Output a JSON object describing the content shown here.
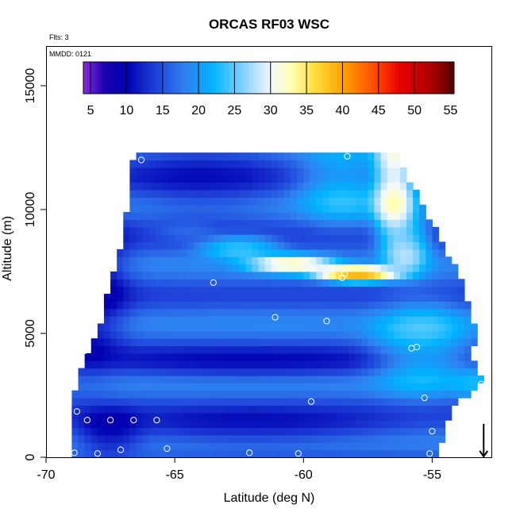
{
  "chart_data": {
    "type": "heatmap",
    "title": "ORCAS RF03 WSC",
    "xlabel": "Latitude (deg N)",
    "ylabel": "Altitude (m)",
    "xlim": [
      -70,
      -52.7
    ],
    "ylim": [
      0,
      16600
    ],
    "x_ticks": [
      -70,
      -65,
      -60,
      -55
    ],
    "y_ticks": [
      0,
      5000,
      10000,
      15000
    ],
    "annotations": {
      "flights": "Flts: 3",
      "mmdd": "MMDD: 0121"
    },
    "colorbar": {
      "min": 4,
      "max": 55.5,
      "ticks": [
        5,
        10,
        15,
        20,
        25,
        30,
        35,
        40,
        45,
        50,
        55
      ],
      "colors": [
        {
          "v": 4,
          "c": "#8a2be2"
        },
        {
          "v": 7,
          "c": "#1a00b0"
        },
        {
          "v": 10,
          "c": "#0000b0"
        },
        {
          "v": 14,
          "c": "#1e40d8"
        },
        {
          "v": 18,
          "c": "#2f80f0"
        },
        {
          "v": 22,
          "c": "#00b4ff"
        },
        {
          "v": 26,
          "c": "#7fd0ff"
        },
        {
          "v": 30,
          "c": "#f2f8ff"
        },
        {
          "v": 33,
          "c": "#ffffb0"
        },
        {
          "v": 36,
          "c": "#ffe040"
        },
        {
          "v": 40,
          "c": "#ffa500"
        },
        {
          "v": 45,
          "c": "#ff4000"
        },
        {
          "v": 48,
          "c": "#e80000"
        },
        {
          "v": 52,
          "c": "#b00000"
        },
        {
          "v": 55.5,
          "c": "#600000"
        }
      ]
    },
    "cell_size": {
      "dlat": 0.25,
      "dalt": 300
    },
    "domain_bounds": [
      {
        "alt": 0,
        "lat_min": -69.0,
        "lat_max": -54.8
      },
      {
        "alt": 2000,
        "lat_min": -69.0,
        "lat_max": -54.2
      },
      {
        "alt": 3000,
        "lat_min": -68.8,
        "lat_max": -53.0
      },
      {
        "alt": 4000,
        "lat_min": -68.5,
        "lat_max": -53.5
      },
      {
        "alt": 5000,
        "lat_min": -68.0,
        "lat_max": -53.3
      },
      {
        "alt": 7000,
        "lat_min": -67.5,
        "lat_max": -53.8
      },
      {
        "alt": 9000,
        "lat_min": -67.0,
        "lat_max": -54.8
      },
      {
        "alt": 11000,
        "lat_min": -66.7,
        "lat_max": -55.8
      },
      {
        "alt": 12300,
        "lat_min": -66.6,
        "lat_max": -56.4
      }
    ],
    "field_features": [
      {
        "lat": -68.5,
        "alt": 7000,
        "value": 5.5,
        "sx": 1.2,
        "sy": 2600,
        "weight": 1.0
      },
      {
        "lat": -67.5,
        "alt": 1000,
        "value": 5.5,
        "sx": 1.0,
        "sy": 700,
        "weight": 0.8
      },
      {
        "lat": -62.0,
        "alt": 3800,
        "value": 9.0,
        "sx": 5.0,
        "sy": 500,
        "weight": 0.7
      },
      {
        "lat": -62.0,
        "alt": 1200,
        "value": 9.0,
        "sx": 4.0,
        "sy": 600,
        "weight": 0.7
      },
      {
        "lat": -64.0,
        "alt": 11500,
        "value": 11.0,
        "sx": 2.2,
        "sy": 1500,
        "weight": 0.9
      },
      {
        "lat": -61.0,
        "alt": 6500,
        "value": 17.0,
        "sx": 3.5,
        "sy": 1400,
        "weight": 0.6
      },
      {
        "lat": -55.5,
        "alt": 4500,
        "value": 28.0,
        "sx": 1.5,
        "sy": 1500,
        "weight": 0.8
      },
      {
        "lat": -53.3,
        "alt": 3000,
        "value": 24.0,
        "sx": 0.8,
        "sy": 500,
        "weight": 0.6
      },
      {
        "lat": -58.5,
        "alt": 11000,
        "value": 28.0,
        "sx": 1.4,
        "sy": 1300,
        "weight": 0.6
      },
      {
        "lat": -56.5,
        "alt": 11000,
        "value": 38.0,
        "sx": 0.6,
        "sy": 1800,
        "weight": 1.3
      },
      {
        "lat": -56.0,
        "alt": 8500,
        "value": 34.0,
        "sx": 0.7,
        "sy": 900,
        "weight": 0.8
      },
      {
        "lat": -58.0,
        "alt": 7400,
        "value": 49.0,
        "sx": 1.2,
        "sy": 250,
        "weight": 1.4
      },
      {
        "lat": -60.5,
        "alt": 7800,
        "value": 41.0,
        "sx": 1.3,
        "sy": 300,
        "weight": 1.1
      },
      {
        "lat": -62.5,
        "alt": 8500,
        "value": 29.0,
        "sx": 1.2,
        "sy": 400,
        "weight": 1.0
      },
      {
        "lat": -64.5,
        "alt": 9100,
        "value": 21.0,
        "sx": 1.0,
        "sy": 300,
        "weight": 0.7
      },
      {
        "lat": -60.0,
        "alt": 200,
        "value": 14.0,
        "sx": 5.0,
        "sy": 300,
        "weight": 0.4
      }
    ],
    "base_value": 16.0,
    "points": [
      {
        "lat": -66.3,
        "alt": 12000
      },
      {
        "lat": -58.3,
        "alt": 12150
      },
      {
        "lat": -67.3,
        "alt": 9850
      },
      {
        "lat": -63.5,
        "alt": 7050
      },
      {
        "lat": -58.4,
        "alt": 7400
      },
      {
        "lat": -58.5,
        "alt": 7250
      },
      {
        "lat": -67.8,
        "alt": 6700
      },
      {
        "lat": -61.1,
        "alt": 5650
      },
      {
        "lat": -59.1,
        "alt": 5500
      },
      {
        "lat": -68.5,
        "alt": 4300
      },
      {
        "lat": -55.8,
        "alt": 4400
      },
      {
        "lat": -55.6,
        "alt": 4450
      },
      {
        "lat": -53.1,
        "alt": 2950
      },
      {
        "lat": -55.3,
        "alt": 2400
      },
      {
        "lat": -59.7,
        "alt": 2250
      },
      {
        "lat": -68.8,
        "alt": 1850
      },
      {
        "lat": -68.4,
        "alt": 1500
      },
      {
        "lat": -67.5,
        "alt": 1500
      },
      {
        "lat": -66.6,
        "alt": 1500
      },
      {
        "lat": -65.7,
        "alt": 1500
      },
      {
        "lat": -55.0,
        "alt": 1050
      },
      {
        "lat": -67.1,
        "alt": 300
      },
      {
        "lat": -65.3,
        "alt": 350
      },
      {
        "lat": -62.1,
        "alt": 180
      },
      {
        "lat": -60.2,
        "alt": 150
      },
      {
        "lat": -55.1,
        "alt": 150
      },
      {
        "lat": -68.9,
        "alt": 180
      },
      {
        "lat": -68.0,
        "alt": 150
      }
    ],
    "arrow": {
      "lat": -53.0
    }
  }
}
